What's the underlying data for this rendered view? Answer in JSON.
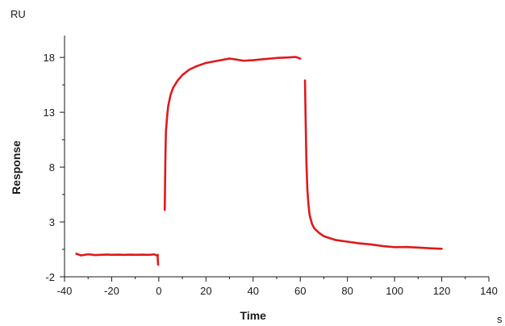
{
  "chart_data": {
    "type": "line",
    "title": "",
    "xlabel": "Time",
    "ylabel": "Response",
    "x_unit": "s",
    "y_unit": "RU",
    "xlim": [
      -40,
      140
    ],
    "ylim": [
      -2,
      20
    ],
    "x_ticks": [
      -40,
      -20,
      0,
      20,
      40,
      60,
      80,
      100,
      120,
      140
    ],
    "y_ticks": [
      -2,
      3,
      8,
      13,
      18
    ],
    "y_minor_ticks": [
      0.5,
      5.5,
      10.5,
      15.5
    ],
    "grid": false,
    "legend": "none",
    "series": [
      {
        "color": "#e0191b",
        "segments": [
          {
            "x": [
              -35,
              -33,
              -30,
              -27,
              -25,
              -22,
              -20,
              -17,
              -15,
              -12,
              -10,
              -7,
              -5,
              -3,
              -2,
              -1,
              -0.5
            ],
            "y": [
              0.1,
              -0.05,
              0.05,
              -0.02,
              0.0,
              0.03,
              0.0,
              0.02,
              0.0,
              0.02,
              0.0,
              0.02,
              0.0,
              0.02,
              0.05,
              -0.05,
              0.0
            ]
          },
          {
            "x": [
              -0.5,
              -0.4,
              -0.3
            ],
            "y": [
              0.0,
              -0.6,
              -0.9
            ]
          },
          {
            "x": [
              2.5,
              2.8,
              3.0,
              3.5,
              4.0,
              5.0,
              6.0,
              8.0,
              10.0,
              13.0,
              16.0,
              20.0,
              25.0,
              30.0,
              33.0,
              36.0,
              40.0,
              45.0,
              50.0,
              55.0,
              58.0,
              60.0
            ],
            "y": [
              4.1,
              9.0,
              11.2,
              12.6,
              13.6,
              14.6,
              15.2,
              15.9,
              16.4,
              16.9,
              17.2,
              17.5,
              17.7,
              17.9,
              17.8,
              17.7,
              17.75,
              17.85,
              17.95,
              18.0,
              18.05,
              17.9
            ]
          },
          {
            "x": [
              62.0,
              62.3,
              62.6,
              63.0,
              63.5,
              64.0,
              65.0,
              66.0,
              68.0,
              70.0,
              75.0,
              80.0,
              85.0,
              90.0,
              95.0,
              100.0,
              105.0,
              110.0,
              115.0,
              120.0
            ],
            "y": [
              15.9,
              12.0,
              8.5,
              6.0,
              4.5,
              3.6,
              2.8,
              2.4,
              2.0,
              1.7,
              1.35,
              1.2,
              1.05,
              0.95,
              0.8,
              0.7,
              0.72,
              0.66,
              0.6,
              0.55
            ]
          }
        ]
      }
    ]
  }
}
